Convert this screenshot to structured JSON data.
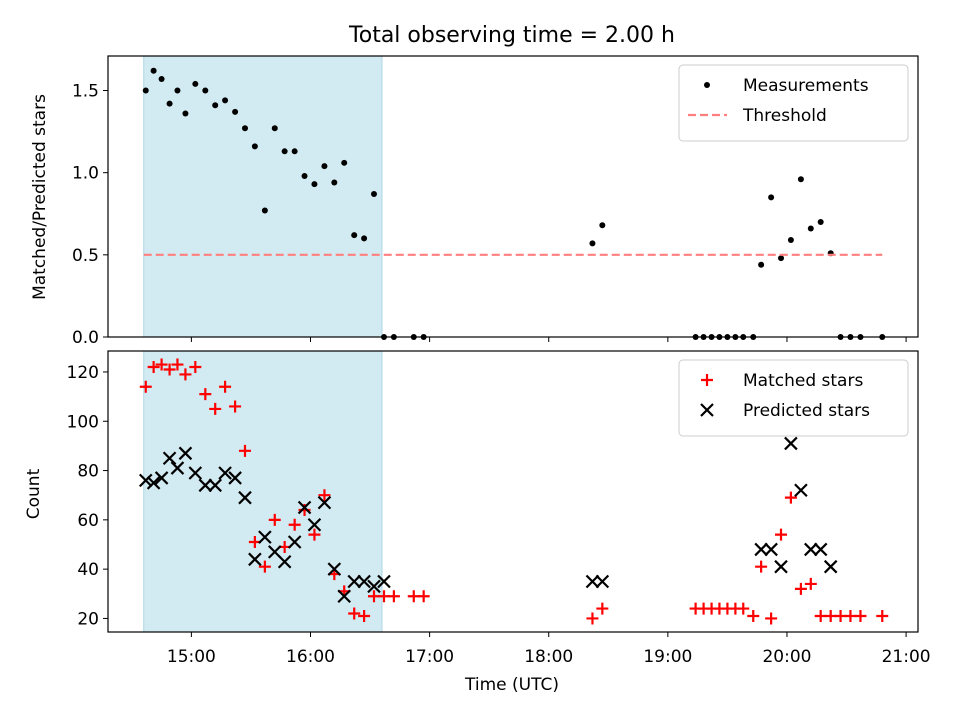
{
  "chart_data": [
    {
      "type": "scatter",
      "title": "Total observing time = 2.00 h",
      "ylabel": "Matched/Predicted stars",
      "xlabel": "",
      "xlim_hours": [
        14.3,
        21.1
      ],
      "ylim": [
        0,
        1.71
      ],
      "yticks": [
        0.0,
        0.5,
        1.0,
        1.5
      ],
      "yticklabels": [
        "0.0",
        "0.5",
        "1.0",
        "1.5"
      ],
      "xticks": [
        15,
        16,
        17,
        18,
        19,
        20,
        21
      ],
      "shaded_interval_hours": [
        14.6,
        16.6
      ],
      "shade_color": "#add8e6",
      "legend": {
        "placement": "top-right",
        "entries": [
          "Measurements",
          "Threshold"
        ]
      },
      "series": [
        {
          "name": "Measurements",
          "marker": "dot",
          "color": "#000000",
          "x": [
            14.617,
            14.683,
            14.75,
            14.817,
            14.883,
            14.95,
            15.033,
            15.117,
            15.2,
            15.283,
            15.367,
            15.45,
            15.533,
            15.617,
            15.7,
            15.783,
            15.867,
            15.95,
            16.033,
            16.117,
            16.2,
            16.283,
            16.367,
            16.45,
            16.533,
            16.617,
            16.7,
            16.867,
            16.95,
            18.367,
            18.45,
            19.233,
            19.3,
            19.367,
            19.433,
            19.5,
            19.567,
            19.633,
            19.717,
            19.783,
            19.867,
            19.95,
            20.033,
            20.117,
            20.2,
            20.283,
            20.367,
            20.45,
            20.533,
            20.617,
            20.8
          ],
          "y": [
            1.5,
            1.62,
            1.57,
            1.42,
            1.5,
            1.36,
            1.54,
            1.5,
            1.41,
            1.44,
            1.37,
            1.27,
            1.16,
            0.77,
            1.27,
            1.13,
            1.13,
            0.98,
            0.93,
            1.04,
            0.94,
            1.06,
            0.62,
            0.6,
            0.87,
            0.0,
            0.0,
            0.0,
            0.0,
            0.57,
            0.68,
            0.0,
            0.0,
            0.0,
            0.0,
            0.0,
            0.0,
            0.0,
            0.0,
            0.44,
            0.85,
            0.48,
            0.59,
            0.96,
            0.66,
            0.7,
            0.51,
            0.0,
            0.0,
            0.0,
            0.0
          ]
        },
        {
          "name": "Threshold",
          "style": "dashed-line",
          "color": "#ff7f7f",
          "x": [
            14.6,
            20.8
          ],
          "y": [
            0.5,
            0.5
          ]
        }
      ]
    },
    {
      "type": "scatter",
      "title": "",
      "ylabel": "Count",
      "xlabel": "Time (UTC)",
      "xlim_hours": [
        14.3,
        21.1
      ],
      "ylim": [
        14.5,
        128.5
      ],
      "yticks": [
        20,
        40,
        60,
        80,
        100,
        120
      ],
      "yticklabels": [
        "20",
        "40",
        "60",
        "80",
        "100",
        "120"
      ],
      "xticks": [
        15,
        16,
        17,
        18,
        19,
        20,
        21
      ],
      "xticklabels": [
        "15:00",
        "16:00",
        "17:00",
        "18:00",
        "19:00",
        "20:00",
        "21:00"
      ],
      "shaded_interval_hours": [
        14.6,
        16.6
      ],
      "shade_color": "#add8e6",
      "legend": {
        "placement": "top-right",
        "entries": [
          "Matched stars",
          "Predicted stars"
        ]
      },
      "series": [
        {
          "name": "Matched stars",
          "marker": "plus",
          "color": "#ff0000",
          "x": [
            14.617,
            14.683,
            14.75,
            14.817,
            14.883,
            14.95,
            15.033,
            15.117,
            15.2,
            15.283,
            15.367,
            15.45,
            15.533,
            15.617,
            15.7,
            15.783,
            15.867,
            15.95,
            16.033,
            16.117,
            16.2,
            16.283,
            16.367,
            16.45,
            16.533,
            16.617,
            16.7,
            16.867,
            16.95,
            18.367,
            18.45,
            19.233,
            19.3,
            19.367,
            19.433,
            19.5,
            19.567,
            19.633,
            19.717,
            19.783,
            19.867,
            19.95,
            20.033,
            20.117,
            20.2,
            20.283,
            20.367,
            20.45,
            20.533,
            20.617,
            20.8
          ],
          "y": [
            114,
            122,
            123,
            121,
            123,
            119,
            122,
            111,
            105,
            114,
            106,
            88,
            51,
            41,
            60,
            49,
            58,
            64,
            54,
            70,
            38,
            31,
            22,
            21,
            29,
            29,
            29,
            29,
            29,
            20,
            24,
            24,
            24,
            24,
            24,
            24,
            24,
            24,
            21,
            41,
            20,
            54,
            69,
            32,
            34,
            21,
            21,
            21,
            21,
            21,
            21
          ]
        },
        {
          "name": "Predicted stars",
          "marker": "x",
          "color": "#000000",
          "x": [
            14.617,
            14.683,
            14.75,
            14.817,
            14.883,
            14.95,
            15.033,
            15.117,
            15.2,
            15.283,
            15.367,
            15.45,
            15.533,
            15.617,
            15.7,
            15.783,
            15.867,
            15.95,
            16.033,
            16.117,
            16.2,
            16.283,
            16.367,
            16.45,
            16.533,
            16.617,
            18.367,
            18.45,
            19.783,
            19.867,
            19.95,
            20.033,
            20.117,
            20.2,
            20.283,
            20.367
          ],
          "y": [
            76,
            75,
            77,
            85,
            81,
            87,
            79,
            74,
            74,
            79,
            77,
            69,
            44,
            53,
            47,
            43,
            51,
            65,
            58,
            67,
            40,
            29,
            35,
            35,
            33,
            35,
            35,
            35,
            48,
            48,
            41,
            91,
            72,
            48,
            48,
            41
          ]
        }
      ]
    }
  ]
}
